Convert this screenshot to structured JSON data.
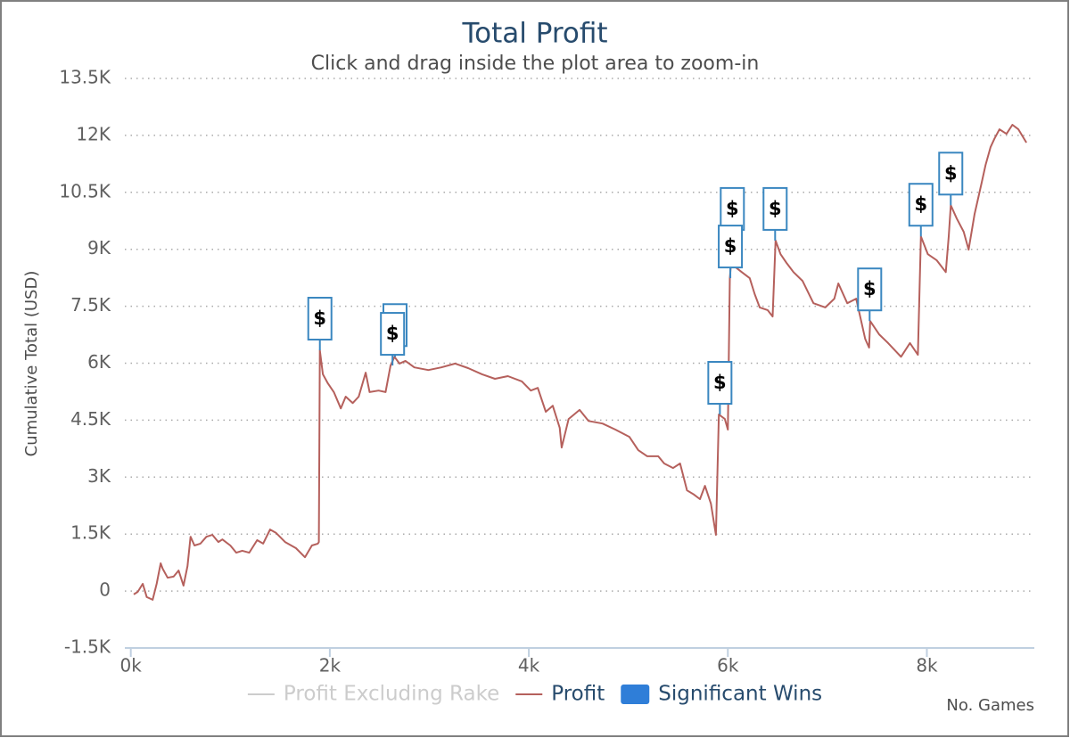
{
  "chart_data": {
    "type": "line",
    "title": "Total Profit",
    "subtitle": "Click and drag inside the plot area to zoom-in",
    "y_axis_label": "Cumulative Total (USD)",
    "x_axis_label": "No. Games",
    "xlim": [
      -60,
      9080
    ],
    "ylim": [
      -1500,
      13500
    ],
    "xticks": [
      {
        "value": 0,
        "label": "0k"
      },
      {
        "value": 2000,
        "label": "2k"
      },
      {
        "value": 4000,
        "label": "4k"
      },
      {
        "value": 6000,
        "label": "6k"
      },
      {
        "value": 8000,
        "label": "8k"
      }
    ],
    "yticks": [
      {
        "value": -1500,
        "label": "-1.5K"
      },
      0,
      {
        "value": 1500,
        "label": "1.5K"
      },
      {
        "value": 3000,
        "label": "3K"
      },
      {
        "value": 4500,
        "label": "4.5K"
      },
      {
        "value": 6000,
        "label": "6K"
      },
      {
        "value": 7500,
        "label": "7.5K"
      },
      {
        "value": 9000,
        "label": "9K"
      },
      {
        "value": 10500,
        "label": "10.5K"
      },
      {
        "value": 12000,
        "label": "12K"
      },
      {
        "value": 13500,
        "label": "13.5K"
      }
    ],
    "grid": true,
    "legend": "bottom",
    "series": [
      {
        "name": "Profit Excluding Rake",
        "color": "#cccccc",
        "visible": false
      },
      {
        "name": "Profit",
        "color": "#b5605c",
        "x": [
          30,
          70,
          120,
          160,
          220,
          260,
          300,
          320,
          370,
          430,
          480,
          530,
          570,
          600,
          640,
          700,
          760,
          820,
          880,
          920,
          1000,
          1060,
          1120,
          1190,
          1270,
          1330,
          1400,
          1460,
          1550,
          1660,
          1750,
          1820,
          1880,
          1890,
          1900,
          1930,
          1980,
          2040,
          2110,
          2160,
          2230,
          2290,
          2360,
          2400,
          2490,
          2560,
          2610,
          2650,
          2700,
          2760,
          2850,
          2990,
          3120,
          3260,
          3390,
          3530,
          3660,
          3790,
          3930,
          4020,
          4090,
          4170,
          4240,
          4310,
          4330,
          4400,
          4510,
          4600,
          4740,
          4870,
          5010,
          5100,
          5190,
          5300,
          5360,
          5450,
          5520,
          5590,
          5660,
          5720,
          5770,
          5830,
          5880,
          5910,
          5970,
          6000,
          6020,
          6050,
          6080,
          6140,
          6220,
          6270,
          6320,
          6400,
          6450,
          6480,
          6530,
          6590,
          6660,
          6750,
          6860,
          6980,
          7070,
          7110,
          7200,
          7290,
          7380,
          7420,
          7430,
          7520,
          7610,
          7740,
          7830,
          7910,
          7940,
          8010,
          8100,
          8190,
          8220,
          8240,
          8300,
          8370,
          8420,
          8480,
          8550,
          8590,
          8640,
          8680,
          8730,
          8800,
          8860,
          8920,
          9000
        ],
        "values": [
          -90,
          -20,
          190,
          -160,
          -230,
          190,
          730,
          590,
          350,
          380,
          540,
          140,
          660,
          1430,
          1200,
          1250,
          1430,
          1480,
          1290,
          1360,
          1200,
          1010,
          1060,
          1010,
          1340,
          1250,
          1620,
          1530,
          1290,
          1130,
          890,
          1200,
          1250,
          1290,
          6340,
          5710,
          5470,
          5240,
          4810,
          5120,
          4950,
          5120,
          5750,
          5240,
          5280,
          5240,
          5940,
          6170,
          5990,
          6060,
          5890,
          5820,
          5890,
          5990,
          5870,
          5710,
          5590,
          5660,
          5520,
          5280,
          5350,
          4720,
          4880,
          4300,
          3780,
          4530,
          4770,
          4480,
          4410,
          4250,
          4060,
          3710,
          3550,
          3550,
          3360,
          3240,
          3360,
          2650,
          2540,
          2420,
          2770,
          2300,
          1480,
          4650,
          4530,
          4250,
          8240,
          9230,
          8520,
          8400,
          8240,
          7820,
          7470,
          7400,
          7230,
          9230,
          8870,
          8640,
          8400,
          8170,
          7580,
          7470,
          7700,
          8100,
          7580,
          7700,
          6640,
          6410,
          7110,
          6760,
          6530,
          6170,
          6530,
          6220,
          9340,
          8870,
          8710,
          8400,
          9340,
          10160,
          9810,
          9460,
          8990,
          9930,
          10750,
          11220,
          11690,
          11920,
          12160,
          12040,
          12280,
          12160,
          11810
        ]
      },
      {
        "name": "Significant Wins",
        "color": "#2f7ed8",
        "type": "flags",
        "x": [
          1900,
          2655,
          2630,
          5920,
          6045,
          6025,
          6475,
          7425,
          7940,
          8240
        ],
        "values": [
          6340,
          6170,
          5940,
          4650,
          9230,
          8240,
          9230,
          7110,
          9340,
          10160
        ],
        "titles": [
          "$",
          "$",
          "$",
          "$",
          "$",
          "$",
          "$",
          "$",
          "$",
          "$"
        ]
      }
    ]
  }
}
